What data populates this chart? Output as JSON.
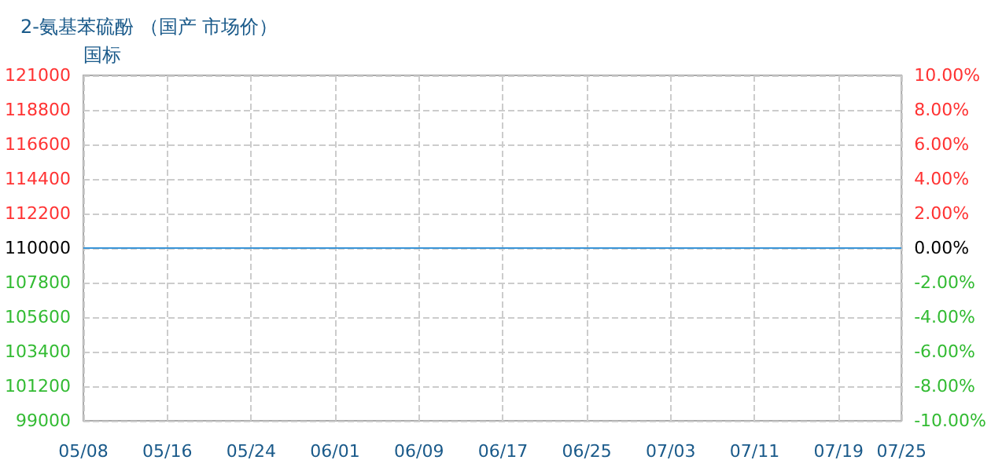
{
  "chart_data": {
    "type": "line",
    "title": "2-氨基苯硫酚 （国产 市场价）",
    "subtitle": "国标",
    "x": [
      "--05-08",
      "--07-25"
    ],
    "series": [
      {
        "color": "#3a95d8",
        "values": [
          110000,
          110000
        ]
      }
    ],
    "xlim": [
      "--05-08",
      "--07-25"
    ],
    "xticks": [
      {
        "value": "--05-08",
        "label": "05/08"
      },
      {
        "value": "--05-16",
        "label": "05/16"
      },
      {
        "value": "--05-24",
        "label": "05/24"
      },
      {
        "value": "--06-01",
        "label": "06/01"
      },
      {
        "value": "--06-09",
        "label": "06/09"
      },
      {
        "value": "--06-17",
        "label": "06/17"
      },
      {
        "value": "--06-25",
        "label": "06/25"
      },
      {
        "value": "--07-03",
        "label": "07/03"
      },
      {
        "value": "--07-11",
        "label": "07/11"
      },
      {
        "value": "--07-19",
        "label": "07/19"
      },
      {
        "value": "--07-25",
        "label": "07/25"
      }
    ],
    "ylim": [
      99000,
      121000
    ],
    "yticks": [
      99000,
      101200,
      103400,
      105600,
      107800,
      110000,
      112200,
      114400,
      116600,
      118800,
      121000
    ],
    "y2lim": [
      -10,
      10
    ],
    "y2ticks": [
      {
        "value": -10,
        "label": "-10.00%"
      },
      {
        "value": -8,
        "label": "-8.00%"
      },
      {
        "value": -6,
        "label": "-6.00%"
      },
      {
        "value": -4,
        "label": "-4.00%"
      },
      {
        "value": -2,
        "label": "-2.00%"
      },
      {
        "value": 0,
        "label": "0.00%"
      },
      {
        "value": 2,
        "label": "2.00%"
      },
      {
        "value": 4,
        "label": "4.00%"
      },
      {
        "value": 6,
        "label": "6.00%"
      },
      {
        "value": 8,
        "label": "8.00%"
      },
      {
        "value": 10,
        "label": "10.00%"
      }
    ],
    "grid": true,
    "marker": "none",
    "line_style": "solid"
  }
}
